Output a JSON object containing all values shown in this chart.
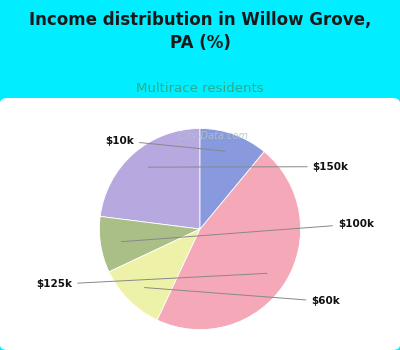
{
  "title": "Income distribution in Willow Grove,\nPA (%)",
  "subtitle": "Multirace residents",
  "title_color": "#1a1a1a",
  "subtitle_color": "#2eaa88",
  "background_color": "#00eeff",
  "chart_bg": "#ffffff",
  "labels": [
    "$150k",
    "$100k",
    "$60k",
    "$125k",
    "$10k"
  ],
  "values": [
    23,
    9,
    11,
    46,
    11
  ],
  "colors": [
    "#b8a8e0",
    "#aabf88",
    "#eef2a8",
    "#f4a8b8",
    "#8899dd"
  ],
  "startangle": 90,
  "watermark": "  City-Data.com"
}
